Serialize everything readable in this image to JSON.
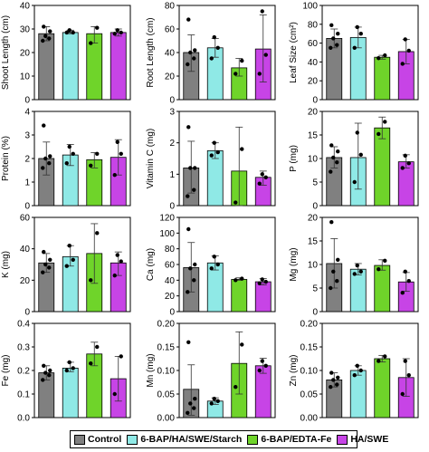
{
  "legend": [
    {
      "name": "Control",
      "color": "#808080"
    },
    {
      "name": "6-BAP/HA/SWE/Starch",
      "color": "#8fe9e6"
    },
    {
      "name": "6-BAP/EDTA-Fe",
      "color": "#6fd42a"
    },
    {
      "name": "HA/SWE",
      "color": "#c744e6"
    }
  ],
  "chart_data": [
    {
      "type": "bar",
      "ylabel": "Shoot Length (cm)",
      "ylim": [
        0,
        40
      ],
      "yticks": [
        "0",
        "10",
        "20",
        "30",
        "40"
      ],
      "series": [
        {
          "name": "Control",
          "value": 28,
          "err": [
            25,
            31
          ],
          "points": [
            25,
            26,
            27,
            29,
            31
          ]
        },
        {
          "name": "6-BAP/HA/SWE/Starch",
          "value": 28.5,
          "err": [
            28,
            29.5
          ],
          "points": [
            28.5,
            28.5,
            29.5
          ]
        },
        {
          "name": "6-BAP/EDTA-Fe",
          "value": 28,
          "err": [
            24,
            31
          ],
          "points": [
            24,
            30.5
          ]
        },
        {
          "name": "HA/SWE",
          "value": 28.5,
          "err": [
            27,
            30
          ],
          "points": [
            28,
            28.5,
            29.5
          ]
        }
      ]
    },
    {
      "type": "bar",
      "ylabel": "Root Length (cm)",
      "ylim": [
        0,
        80
      ],
      "yticks": [
        "0",
        "20",
        "40",
        "60",
        "80"
      ],
      "series": [
        {
          "name": "Control",
          "value": 40,
          "err": [
            24,
            55
          ],
          "points": [
            30,
            35,
            40,
            42,
            68
          ]
        },
        {
          "name": "6-BAP/HA/SWE/Starch",
          "value": 44,
          "err": [
            36,
            52
          ],
          "points": [
            35,
            44,
            53
          ]
        },
        {
          "name": "6-BAP/EDTA-Fe",
          "value": 27,
          "err": [
            20,
            35
          ],
          "points": [
            22,
            33
          ]
        },
        {
          "name": "HA/SWE",
          "value": 43,
          "err": [
            15,
            72
          ],
          "points": [
            22,
            38,
            75
          ]
        }
      ]
    },
    {
      "type": "bar",
      "ylabel": "Leaf Size (cm²)",
      "ylim": [
        0,
        100
      ],
      "yticks": [
        "0",
        "20",
        "40",
        "60",
        "80",
        "100"
      ],
      "series": [
        {
          "name": "Control",
          "value": 65,
          "err": [
            55,
            75
          ],
          "points": [
            55,
            58,
            65,
            70,
            79
          ]
        },
        {
          "name": "6-BAP/HA/SWE/Starch",
          "value": 66,
          "err": [
            55,
            77
          ],
          "points": [
            55,
            70,
            77
          ]
        },
        {
          "name": "6-BAP/EDTA-Fe",
          "value": 45,
          "err": [
            43,
            47
          ],
          "points": [
            44,
            47
          ]
        },
        {
          "name": "HA/SWE",
          "value": 51,
          "err": [
            38,
            64
          ],
          "points": [
            38,
            52,
            64
          ]
        }
      ]
    },
    {
      "type": "bar",
      "ylabel": "Protein (%)",
      "ylim": [
        0,
        4
      ],
      "yticks": [
        "0",
        "1",
        "2",
        "3",
        "4"
      ],
      "series": [
        {
          "name": "Control",
          "value": 2.0,
          "err": [
            1.3,
            2.7
          ],
          "points": [
            1.6,
            1.8,
            2.0,
            2.1,
            3.4
          ]
        },
        {
          "name": "6-BAP/HA/SWE/Starch",
          "value": 2.15,
          "err": [
            1.7,
            2.6
          ],
          "points": [
            1.8,
            2.2,
            2.5
          ]
        },
        {
          "name": "6-BAP/EDTA-Fe",
          "value": 1.95,
          "err": [
            1.6,
            2.25
          ],
          "points": [
            1.7,
            2.2
          ]
        },
        {
          "name": "HA/SWE",
          "value": 2.05,
          "err": [
            1.3,
            2.8
          ],
          "points": [
            1.3,
            2.2,
            2.7
          ]
        }
      ]
    },
    {
      "type": "bar",
      "ylabel": "Vitamin C (mg)",
      "ylim": [
        0,
        3
      ],
      "yticks": [
        "0",
        "1",
        "2",
        "3"
      ],
      "series": [
        {
          "name": "Control",
          "value": 1.2,
          "err": [
            0.4,
            2.05
          ],
          "points": [
            0.3,
            0.5,
            1.2,
            1.2,
            2.5
          ]
        },
        {
          "name": "6-BAP/HA/SWE/Starch",
          "value": 1.75,
          "err": [
            1.5,
            2.0
          ],
          "points": [
            1.6,
            1.7,
            2.0
          ]
        },
        {
          "name": "6-BAP/EDTA-Fe",
          "value": 1.1,
          "err": [
            0.0,
            2.5
          ],
          "points": [
            0.1,
            1.8
          ]
        },
        {
          "name": "HA/SWE",
          "value": 0.9,
          "err": [
            0.65,
            1.1
          ],
          "points": [
            0.7,
            0.9,
            1.0
          ]
        }
      ]
    },
    {
      "type": "bar",
      "ylabel": "P (mg)",
      "ylim": [
        0,
        20
      ],
      "yticks": [
        "0",
        "5",
        "10",
        "15",
        "20"
      ],
      "series": [
        {
          "name": "Control",
          "value": 10.2,
          "err": [
            8.0,
            12.5
          ],
          "points": [
            7.2,
            9.2,
            10.2,
            11.5,
            12.8
          ]
        },
        {
          "name": "6-BAP/HA/SWE/Starch",
          "value": 10.2,
          "err": [
            3.5,
            17.5
          ],
          "points": [
            5.0,
            10.8,
            15.5
          ]
        },
        {
          "name": "6-BAP/EDTA-Fe",
          "value": 16.5,
          "err": [
            14.2,
            18.8
          ],
          "points": [
            15.2,
            17.8
          ]
        },
        {
          "name": "HA/SWE",
          "value": 9.3,
          "err": [
            8.0,
            10.8
          ],
          "points": [
            8.0,
            9.0,
            10.6
          ]
        }
      ]
    },
    {
      "type": "bar",
      "ylabel": "K (mg)",
      "ylim": [
        0,
        60
      ],
      "yticks": [
        "0",
        "20",
        "40",
        "60"
      ],
      "series": [
        {
          "name": "Control",
          "value": 31,
          "err": [
            25,
            37
          ],
          "points": [
            25,
            28,
            30,
            33,
            38
          ]
        },
        {
          "name": "6-BAP/HA/SWE/Starch",
          "value": 35,
          "err": [
            29,
            42
          ],
          "points": [
            29,
            33,
            42
          ]
        },
        {
          "name": "6-BAP/EDTA-Fe",
          "value": 37,
          "err": [
            18,
            56
          ],
          "points": [
            20,
            50
          ]
        },
        {
          "name": "HA/SWE",
          "value": 31,
          "err": [
            23,
            38
          ],
          "points": [
            23,
            32,
            36
          ]
        }
      ]
    },
    {
      "type": "bar",
      "ylabel": "Ca (mg)",
      "ylim": [
        0,
        120
      ],
      "yticks": [
        "0",
        "20",
        "40",
        "60",
        "80",
        "100",
        "120"
      ],
      "series": [
        {
          "name": "Control",
          "value": 56,
          "err": [
            25,
            88
          ],
          "points": [
            25,
            40,
            55,
            60,
            105
          ]
        },
        {
          "name": "6-BAP/HA/SWE/Starch",
          "value": 62,
          "err": [
            53,
            71
          ],
          "points": [
            55,
            60,
            70
          ]
        },
        {
          "name": "6-BAP/EDTA-Fe",
          "value": 41,
          "err": [
            40,
            43
          ],
          "points": [
            40,
            42
          ]
        },
        {
          "name": "HA/SWE",
          "value": 38,
          "err": [
            34,
            42
          ],
          "points": [
            36,
            38,
            41
          ]
        }
      ]
    },
    {
      "type": "bar",
      "ylabel": "Mg (mg)",
      "ylim": [
        0,
        20
      ],
      "yticks": [
        "0",
        "5",
        "10",
        "15",
        "20"
      ],
      "series": [
        {
          "name": "Control",
          "value": 10.2,
          "err": [
            5.0,
            15.5
          ],
          "points": [
            5.0,
            6.5,
            8.5,
            11.0,
            19.0
          ]
        },
        {
          "name": "6-BAP/HA/SWE/Starch",
          "value": 9.0,
          "err": [
            7.8,
            10.2
          ],
          "points": [
            8.0,
            8.5,
            9.8
          ]
        },
        {
          "name": "6-BAP/EDTA-Fe",
          "value": 9.8,
          "err": [
            8.8,
            11.0
          ],
          "points": [
            9.0,
            10.8
          ]
        },
        {
          "name": "HA/SWE",
          "value": 6.3,
          "err": [
            4.3,
            8.3
          ],
          "points": [
            4.0,
            6.5,
            8.5
          ]
        }
      ]
    },
    {
      "type": "bar",
      "ylabel": "Fe (mg)",
      "ylim": [
        0,
        0.4
      ],
      "yticks": [
        "0.0",
        "0.1",
        "0.2",
        "0.3",
        "0.4"
      ],
      "series": [
        {
          "name": "Control",
          "value": 0.19,
          "err": [
            0.16,
            0.22
          ],
          "points": [
            0.16,
            0.18,
            0.19,
            0.2,
            0.22
          ]
        },
        {
          "name": "6-BAP/HA/SWE/Starch",
          "value": 0.21,
          "err": [
            0.195,
            0.235
          ],
          "points": [
            0.2,
            0.21,
            0.235
          ]
        },
        {
          "name": "6-BAP/EDTA-Fe",
          "value": 0.27,
          "err": [
            0.22,
            0.32
          ],
          "points": [
            0.23,
            0.3
          ]
        },
        {
          "name": "HA/SWE",
          "value": 0.165,
          "err": [
            0.07,
            0.26
          ],
          "points": [
            0.1,
            0.26
          ]
        }
      ]
    },
    {
      "type": "bar",
      "ylabel": "Mn (mg)",
      "ylim": [
        0,
        0.2
      ],
      "yticks": [
        "0.00",
        "0.05",
        "0.10",
        "0.15",
        "0.20"
      ],
      "series": [
        {
          "name": "Control",
          "value": 0.06,
          "err": [
            0.005,
            0.112
          ],
          "points": [
            0.01,
            0.02,
            0.03,
            0.04,
            0.16
          ]
        },
        {
          "name": "6-BAP/HA/SWE/Starch",
          "value": 0.035,
          "err": [
            0.028,
            0.042
          ],
          "points": [
            0.03,
            0.035,
            0.04
          ]
        },
        {
          "name": "6-BAP/EDTA-Fe",
          "value": 0.115,
          "err": [
            0.05,
            0.182
          ],
          "points": [
            0.065,
            0.155
          ]
        },
        {
          "name": "HA/SWE",
          "value": 0.11,
          "err": [
            0.094,
            0.126
          ],
          "points": [
            0.1,
            0.11,
            0.12
          ]
        }
      ]
    },
    {
      "type": "bar",
      "ylabel": "Zn (mg)",
      "ylim": [
        0,
        0.2
      ],
      "yticks": [
        "0.00",
        "0.05",
        "0.10",
        "0.15",
        "0.20"
      ],
      "series": [
        {
          "name": "Control",
          "value": 0.08,
          "err": [
            0.065,
            0.095
          ],
          "points": [
            0.065,
            0.07,
            0.08,
            0.085,
            0.095
          ]
        },
        {
          "name": "6-BAP/HA/SWE/Starch",
          "value": 0.1,
          "err": [
            0.09,
            0.11
          ],
          "points": [
            0.09,
            0.1,
            0.11
          ]
        },
        {
          "name": "6-BAP/EDTA-Fe",
          "value": 0.125,
          "err": [
            0.118,
            0.132
          ],
          "points": [
            0.12,
            0.13
          ]
        },
        {
          "name": "HA/SWE",
          "value": 0.085,
          "err": [
            0.045,
            0.125
          ],
          "points": [
            0.05,
            0.09,
            0.12
          ]
        }
      ]
    }
  ]
}
